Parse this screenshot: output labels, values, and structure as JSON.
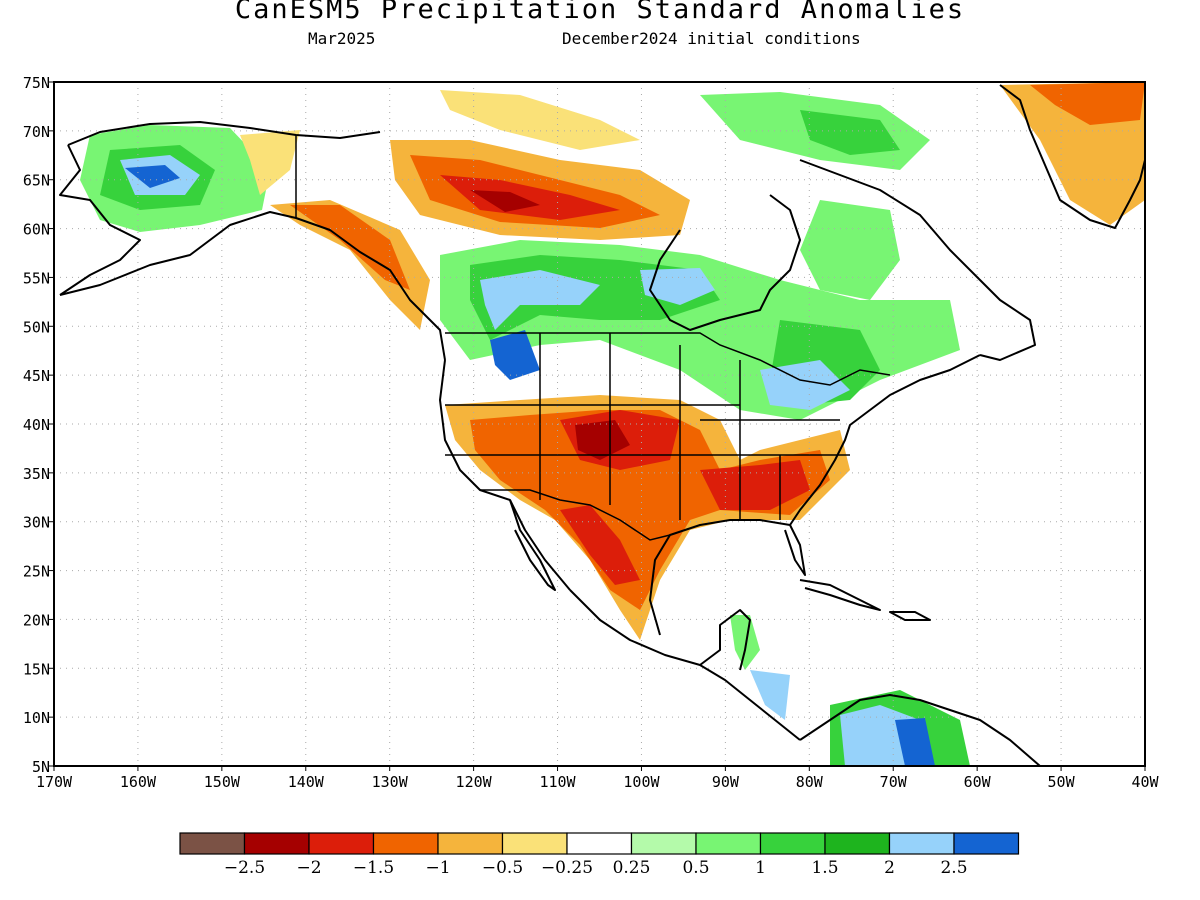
{
  "header": {
    "title": "CanESM5 Precipitation Standard Anomalies",
    "forecast_month": "Mar2025",
    "initial_conditions": "December2024 initial conditions"
  },
  "map": {
    "lon_labels": [
      "170W",
      "160W",
      "150W",
      "140W",
      "130W",
      "120W",
      "110W",
      "100W",
      "90W",
      "80W",
      "70W",
      "60W",
      "50W",
      "40W"
    ],
    "lat_labels": [
      "5N",
      "10N",
      "15N",
      "20N",
      "25N",
      "30N",
      "35N",
      "40N",
      "45N",
      "50N",
      "55N",
      "60N",
      "65N",
      "70N",
      "75N"
    ]
  },
  "colorbar": {
    "colors": [
      "#7b5245",
      "#a50000",
      "#dc1e0a",
      "#f06400",
      "#f5b43c",
      "#fae178",
      "#ffffff",
      "#b4faaa",
      "#78f573",
      "#37d23c",
      "#1eb41e",
      "#96d2fa",
      "#1464d2"
    ],
    "labels": [
      "−2.5",
      "−2",
      "−1.5",
      "−1",
      "−0.5",
      "−0.25",
      "0.25",
      "0.5",
      "1",
      "1.5",
      "2",
      "2.5"
    ]
  }
}
